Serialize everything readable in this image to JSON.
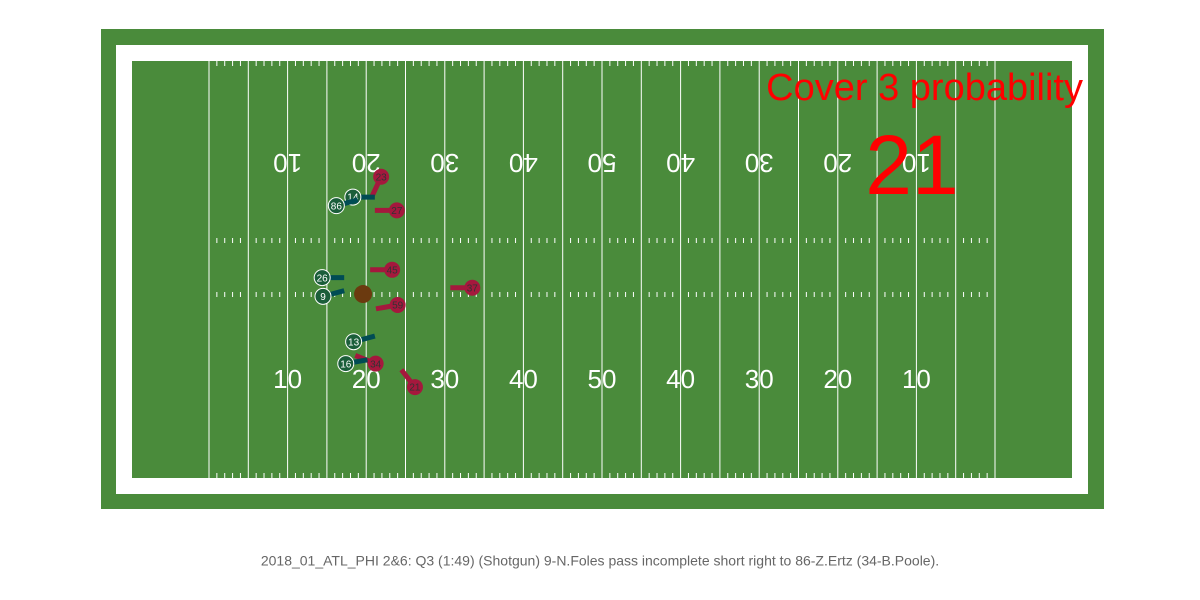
{
  "title": "Cover 3 probability",
  "probability": "21",
  "caption": "2018_01_ATL_PHI 2&6: Q3 (1:49) (Shotgun) 9-N.Foles pass incomplete short right to 86-Z.Ertz (34-B.Poole).",
  "yard_numbers": [
    "10",
    "20",
    "30",
    "40",
    "50",
    "40",
    "30",
    "20",
    "10"
  ],
  "ball": {
    "x": 19.6,
    "y": 29.8
  },
  "players": [
    {
      "team": "defense",
      "number": "23",
      "x": 21.9,
      "y": 14.8,
      "dir": 115
    },
    {
      "team": "defense",
      "number": "27",
      "x": 23.9,
      "y": 19.1,
      "dir": 180
    },
    {
      "team": "defense",
      "number": "45",
      "x": 23.3,
      "y": 26.7,
      "dir": 180
    },
    {
      "team": "defense",
      "number": "37",
      "x": 33.5,
      "y": 29.0,
      "dir": 180
    },
    {
      "team": "defense",
      "number": "59",
      "x": 24.0,
      "y": 31.2,
      "dir": 170
    },
    {
      "team": "defense",
      "number": "34",
      "x": 21.2,
      "y": 38.7,
      "dir": 202
    },
    {
      "team": "defense",
      "number": "21",
      "x": 26.2,
      "y": 41.7,
      "dir": 232
    },
    {
      "team": "offense",
      "number": "14",
      "x": 18.3,
      "y": 17.4,
      "dir": 0
    },
    {
      "team": "offense",
      "number": "86",
      "x": 16.2,
      "y": 18.5,
      "dir": 345
    },
    {
      "team": "offense",
      "number": "26",
      "x": 14.4,
      "y": 27.7,
      "dir": 0
    },
    {
      "team": "offense",
      "number": "9",
      "x": 14.5,
      "y": 30.1,
      "dir": 345
    },
    {
      "team": "offense",
      "number": "13",
      "x": 18.4,
      "y": 35.9,
      "dir": 345
    },
    {
      "team": "offense",
      "number": "16",
      "x": 17.4,
      "y": 38.7,
      "dir": 350
    }
  ]
}
